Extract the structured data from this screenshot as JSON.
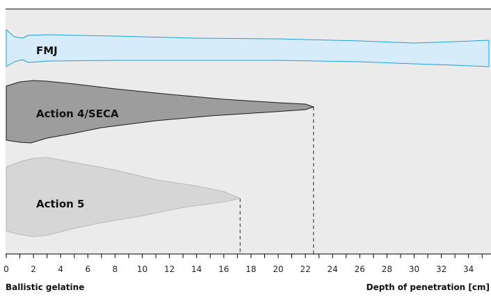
{
  "chart_data": {
    "type": "area",
    "title": "",
    "xlabel": "Depth of penetration [cm]",
    "medium_label": "Ballistic gelatine",
    "x_range": [
      0,
      35.5
    ],
    "x_ticks": [
      0,
      2,
      4,
      6,
      8,
      10,
      12,
      14,
      16,
      18,
      20,
      22,
      24,
      26,
      28,
      30,
      32,
      34
    ],
    "grid": false,
    "background_color": "#ebebeb",
    "series": [
      {
        "name": "FMJ",
        "max_depth_cm": null,
        "fill": "#d6ecfb",
        "stroke": "#1fa0d8",
        "marker_line": false,
        "outline": [
          [
            0,
            43
          ],
          [
            0.6,
            53
          ],
          [
            1.2,
            55
          ],
          [
            1.6,
            51
          ],
          [
            3,
            50
          ],
          [
            8,
            52
          ],
          [
            14,
            55
          ],
          [
            20,
            56
          ],
          [
            26,
            59
          ],
          [
            30,
            62
          ],
          [
            33,
            60
          ],
          [
            35.5,
            58
          ],
          [
            35.5,
            96
          ],
          [
            33,
            94
          ],
          [
            30,
            92
          ],
          [
            26,
            89
          ],
          [
            20,
            87
          ],
          [
            14,
            87
          ],
          [
            8,
            87
          ],
          [
            3,
            88
          ],
          [
            1.6,
            90
          ],
          [
            1.2,
            86
          ],
          [
            0.6,
            89
          ],
          [
            0,
            96
          ]
        ]
      },
      {
        "name": "Action 4/SECA",
        "max_depth_cm": 22.6,
        "fill": "#9d9d9d",
        "stroke": "#1a1a1a",
        "marker_line": true,
        "outline": [
          [
            0,
            124
          ],
          [
            1,
            118
          ],
          [
            2,
            116
          ],
          [
            3,
            117
          ],
          [
            5,
            121
          ],
          [
            8,
            128
          ],
          [
            12,
            136
          ],
          [
            16,
            143
          ],
          [
            20,
            148
          ],
          [
            22,
            150
          ],
          [
            22.6,
            154
          ],
          [
            22,
            158
          ],
          [
            19,
            162
          ],
          [
            15,
            167
          ],
          [
            11,
            174
          ],
          [
            7,
            184
          ],
          [
            5,
            192
          ],
          [
            3,
            199
          ],
          [
            1.8,
            206
          ],
          [
            1,
            205
          ],
          [
            0,
            202
          ]
        ]
      },
      {
        "name": "Action 5",
        "max_depth_cm": 17.2,
        "fill": "#d6d6d6",
        "stroke": "#b9b9b9",
        "marker_line": true,
        "outline": [
          [
            0,
            241
          ],
          [
            1,
            233
          ],
          [
            2,
            228
          ],
          [
            3,
            227
          ],
          [
            5,
            234
          ],
          [
            8,
            245
          ],
          [
            11,
            259
          ],
          [
            14,
            268
          ],
          [
            16,
            276
          ],
          [
            17.2,
            286
          ],
          [
            16,
            291
          ],
          [
            13,
            299
          ],
          [
            10,
            311
          ],
          [
            7,
            321
          ],
          [
            5,
            329
          ],
          [
            3,
            339
          ],
          [
            2,
            341
          ],
          [
            1,
            338
          ],
          [
            0,
            333
          ]
        ]
      }
    ]
  }
}
